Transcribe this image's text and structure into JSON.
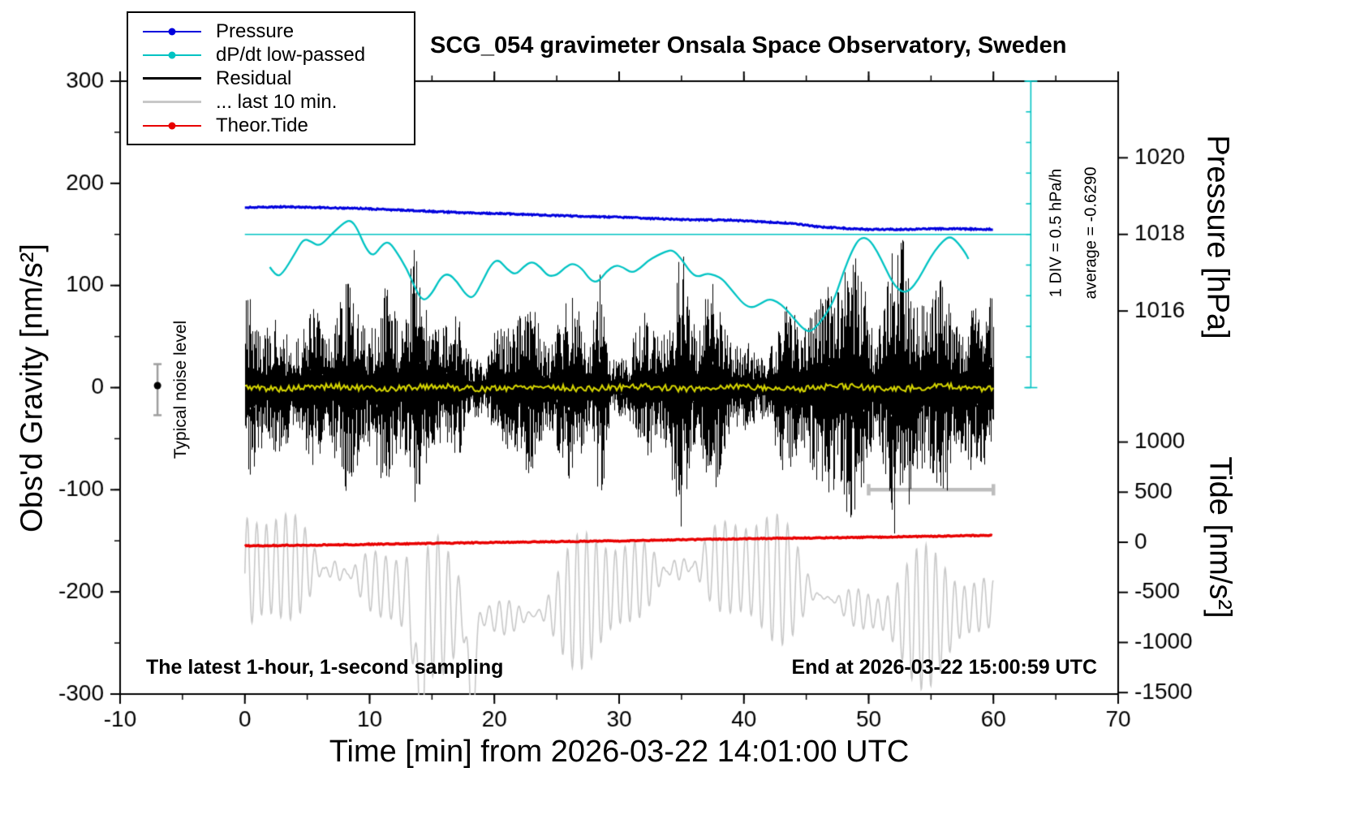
{
  "title": "SCG_054 gravimeter Onsala Space Observatory, Sweden",
  "annotations": {
    "sampling_note": "The latest 1-hour, 1-second sampling",
    "end_note": "End at 2026-03-22 15:00:59 UTC",
    "noise_label": "Typical noise level",
    "div_note": "1 DIV = 0.5 hPa/h",
    "average_note": "average = -0.6290"
  },
  "legend": {
    "items": [
      {
        "label": "Pressure",
        "color": "#0000dd",
        "marker": true,
        "lw": 2
      },
      {
        "label": "dP/dt low-passed",
        "color": "#00c3c3",
        "marker": true,
        "lw": 2
      },
      {
        "label": "Residual",
        "color": "#000000",
        "marker": false,
        "lw": 3
      },
      {
        "label": "... last 10 min.",
        "color": "#c8c8c8",
        "marker": false,
        "lw": 3
      },
      {
        "label": "Theor.Tide",
        "color": "#e80000",
        "marker": true,
        "lw": 2
      }
    ]
  },
  "chart_data": {
    "type": "line",
    "title": "SCG_054 gravimeter Onsala Space Observatory, Sweden",
    "x_axis": {
      "label": "Time [min] from 2026-03-22 14:01:00 UTC",
      "min": -10,
      "max": 70,
      "ticks": [
        -10,
        0,
        10,
        20,
        30,
        40,
        50,
        60,
        70
      ],
      "minor_step": 5
    },
    "y_left": {
      "label": "Obs'd Gravity [nm/s²]",
      "min": -300,
      "max": 300,
      "ticks": [
        -300,
        -200,
        -100,
        0,
        100,
        200,
        300
      ],
      "minor_step": 50
    },
    "y_pressure": {
      "label": "Pressure [hPa]",
      "ticks": [
        1016,
        1018,
        1020
      ],
      "grav_ref": 150,
      "hpa_ref": 1018,
      "grav_per_hpa": 37.5
    },
    "y_tide": {
      "label": "Tide [nm/s²]",
      "ticks": [
        1000,
        500,
        0,
        -500,
        -1000,
        -1500
      ],
      "grav_ref": -151.4,
      "tide_ref": 0,
      "grav_per_unit": 0.0981
    },
    "series": {
      "pressure": {
        "label": "Pressure",
        "color": "#0000dd",
        "unit": "hPa",
        "points": [
          [
            0,
            1018.7
          ],
          [
            3,
            1018.72
          ],
          [
            6,
            1018.7
          ],
          [
            9,
            1018.68
          ],
          [
            12,
            1018.64
          ],
          [
            15,
            1018.6
          ],
          [
            18,
            1018.56
          ],
          [
            21,
            1018.54
          ],
          [
            24,
            1018.5
          ],
          [
            27,
            1018.47
          ],
          [
            30,
            1018.45
          ],
          [
            33,
            1018.41
          ],
          [
            36,
            1018.38
          ],
          [
            39,
            1018.37
          ],
          [
            42,
            1018.32
          ],
          [
            44,
            1018.28
          ],
          [
            46,
            1018.2
          ],
          [
            48,
            1018.16
          ],
          [
            50,
            1018.13
          ],
          [
            53,
            1018.13
          ],
          [
            56,
            1018.15
          ],
          [
            58,
            1018.14
          ],
          [
            60,
            1018.13
          ]
        ]
      },
      "dpdt": {
        "label": "dP/dt low-passed",
        "color": "#00c3c3",
        "unit": "grav_axis",
        "scale_note": "zero at 150 on gravity axis, 1 DIV = 0.5 hPa/h = 30 axis units, average = -0.6290 hPa/h",
        "points": [
          [
            2,
            118
          ],
          [
            2.5,
            109
          ],
          [
            3,
            111
          ],
          [
            4,
            131
          ],
          [
            4.7,
            146
          ],
          [
            5.3,
            143
          ],
          [
            6,
            138
          ],
          [
            7,
            151
          ],
          [
            8,
            162
          ],
          [
            8.5,
            164
          ],
          [
            9,
            156
          ],
          [
            9.7,
            136
          ],
          [
            10.3,
            128
          ],
          [
            11,
            140
          ],
          [
            11.5,
            143
          ],
          [
            12,
            136
          ],
          [
            13,
            116
          ],
          [
            13.7,
            96
          ],
          [
            14.3,
            84
          ],
          [
            15,
            92
          ],
          [
            15.7,
            108
          ],
          [
            16.3,
            112
          ],
          [
            17,
            104
          ],
          [
            17.7,
            91
          ],
          [
            18.3,
            87
          ],
          [
            19,
            103
          ],
          [
            19.7,
            120
          ],
          [
            20.3,
            126
          ],
          [
            21,
            116
          ],
          [
            21.7,
            110
          ],
          [
            22.3,
            118
          ],
          [
            23,
            124
          ],
          [
            23.7,
            118
          ],
          [
            24.3,
            109
          ],
          [
            25,
            110
          ],
          [
            25.7,
            118
          ],
          [
            26.3,
            122
          ],
          [
            27,
            117
          ],
          [
            27.7,
            105
          ],
          [
            28.3,
            103
          ],
          [
            29,
            114
          ],
          [
            29.7,
            120
          ],
          [
            30.3,
            118
          ],
          [
            31,
            112
          ],
          [
            31.7,
            117
          ],
          [
            32.3,
            124
          ],
          [
            33,
            129
          ],
          [
            33.7,
            133
          ],
          [
            34.3,
            135
          ],
          [
            35,
            126
          ],
          [
            35.7,
            113
          ],
          [
            36.3,
            108
          ],
          [
            37,
            112
          ],
          [
            37.7,
            110
          ],
          [
            38.3,
            106
          ],
          [
            39,
            96
          ],
          [
            40,
            81
          ],
          [
            40.7,
            78
          ],
          [
            41.3,
            82
          ],
          [
            42,
            87
          ],
          [
            42.7,
            84
          ],
          [
            43.3,
            78
          ],
          [
            44,
            68
          ],
          [
            44.7,
            58
          ],
          [
            45.3,
            54
          ],
          [
            46,
            62
          ],
          [
            46.7,
            74
          ],
          [
            47.3,
            88
          ],
          [
            48,
            114
          ],
          [
            48.7,
            135
          ],
          [
            49.3,
            147
          ],
          [
            50,
            146
          ],
          [
            50.7,
            133
          ],
          [
            51.3,
            118
          ],
          [
            52,
            101
          ],
          [
            52.7,
            93
          ],
          [
            53.3,
            95
          ],
          [
            54,
            106
          ],
          [
            54.7,
            122
          ],
          [
            55.3,
            134
          ],
          [
            56,
            144
          ],
          [
            56.5,
            148
          ],
          [
            57,
            144
          ],
          [
            57.7,
            133
          ],
          [
            58,
            126
          ]
        ],
        "refline": {
          "g": 150,
          "t0": 0,
          "t1": 63
        },
        "ruler": {
          "t": 63,
          "g0": 0,
          "g1": 300,
          "div": 30
        }
      },
      "residual": {
        "label": "Residual",
        "color": "#000000",
        "center": 0,
        "base": 58,
        "seed": 42,
        "bursts": [
          {
            "t": 8,
            "amp": 55,
            "w": 0.8
          },
          {
            "t": 13.5,
            "amp": 70,
            "w": 0.4
          },
          {
            "t": 28.5,
            "amp": 45,
            "w": 0.3
          },
          {
            "t": 35,
            "amp": 60,
            "w": 0.5
          },
          {
            "t": 47,
            "amp": 30,
            "w": 2.5
          },
          {
            "t": 52.5,
            "amp": 85,
            "w": 0.9
          },
          {
            "t": 56,
            "amp": 65,
            "w": 0.6
          }
        ]
      },
      "residual_last10": {
        "label": "... last 10 min.",
        "color": "#c8c8c8",
        "center": -200,
        "amp": 55,
        "period": 0.8,
        "seed": 7,
        "dips": [
          {
            "t": 14,
            "amp": 130,
            "w": 0.3
          },
          {
            "t": 18.2,
            "amp": 110,
            "w": 0.25
          }
        ]
      },
      "residual_lowpass": {
        "color": "#d6d600",
        "center": 0,
        "amp": 3,
        "seed": 5
      },
      "theor_tide": {
        "label": "Theor.Tide",
        "color": "#e80000",
        "unit": "tide_axis",
        "points": [
          [
            0,
            -37
          ],
          [
            10,
            -21
          ],
          [
            20,
            -1
          ],
          [
            30,
            14
          ],
          [
            40,
            35
          ],
          [
            50,
            50
          ],
          [
            60,
            70
          ]
        ]
      },
      "noise_marker": {
        "t": -7,
        "dot_g": 2,
        "err_lo": -27,
        "err_hi": 23
      },
      "scalebar": {
        "g": -100,
        "t0": 50,
        "t1": 60,
        "color": "#bdbdbd",
        "meaning": "10 min length of gray trace"
      }
    }
  }
}
